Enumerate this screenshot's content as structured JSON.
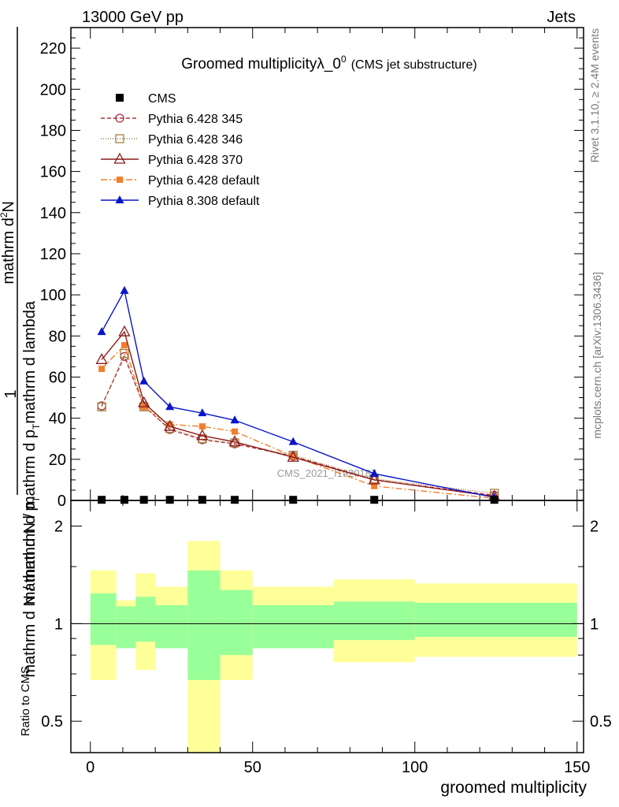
{
  "header": {
    "left": "13000 GeV pp",
    "right": "Jets"
  },
  "side_text": {
    "rivet": "Rivet 3.1.10, ≥ 2.4M events",
    "mcplots": "mcplots.cern.ch [arXiv:1306.3436]"
  },
  "watermark": "CMS_2021_I1920187",
  "colors": {
    "cms": "#000000",
    "p345": "#b03040",
    "p346": "#a08040",
    "p370": "#8b1a1a",
    "p6def": "#f08030",
    "p8def": "#0a14c8",
    "band_outer": "#ffff99",
    "band_inner": "#99ff99"
  },
  "chart_data": [
    {
      "type": "line",
      "title": "Groomed multiplicityλ_0",
      "title_sup": "0",
      "title_suffix": "(CMS jet substructure)",
      "ylabel_line1": "mathrm d N / mathrm d p",
      "ylabel_sub1": "T",
      "ylabel_line1b": "mathrm d lambda",
      "ylabel_line2": "mathrm d",
      "ylabel_sup2": "2",
      "ylabel_line2b": "N",
      "ylabel_frac_num": "1",
      "ylabel_frac_den": "mathrm d N / mathrm d p",
      "ylabel_frac_den_sub": "T",
      "ylim": [
        0,
        230
      ],
      "xlim": [
        -6,
        152
      ],
      "yticks": [
        "0",
        "20",
        "40",
        "60",
        "80",
        "100",
        "120",
        "140",
        "160",
        "180",
        "200",
        "220"
      ],
      "series": [
        {
          "name": "CMS",
          "key": "cms",
          "marker": "filled-square",
          "dash": "none",
          "x": [
            3.5,
            10.5,
            16.5,
            24.5,
            34.5,
            44.5,
            62.5,
            87.5,
            124.5
          ],
          "y": [
            0.3,
            0.3,
            0.3,
            0.3,
            0.3,
            0.3,
            0.3,
            0.3,
            0.3
          ]
        },
        {
          "name": "Pythia 6.428 345",
          "key": "p345",
          "marker": "open-circle",
          "dash": "5,3",
          "x": [
            3.5,
            10.5,
            16.5,
            24.5,
            34.5,
            44.5,
            62.5,
            87.5,
            124.5
          ],
          "y": [
            46,
            70,
            46,
            34.5,
            29.5,
            27.5,
            21.5,
            10,
            2.5
          ]
        },
        {
          "name": "Pythia 6.428 346",
          "key": "p346",
          "marker": "open-square",
          "dash": "1,2",
          "x": [
            3.5,
            10.5,
            16.5,
            24.5,
            34.5,
            44.5,
            62.5,
            87.5,
            124.5
          ],
          "y": [
            45.5,
            71.5,
            45.5,
            35,
            30,
            28,
            22,
            10.5,
            3.5
          ]
        },
        {
          "name": "Pythia 6.428 370",
          "key": "p370",
          "marker": "open-triangle",
          "dash": "none",
          "x": [
            3.5,
            10.5,
            16.5,
            24.5,
            34.5,
            44.5,
            62.5,
            87.5,
            124.5
          ],
          "y": [
            68.5,
            82,
            47.5,
            36,
            31.5,
            28.5,
            21,
            10,
            2
          ]
        },
        {
          "name": "Pythia 6.428 default",
          "key": "p6def",
          "marker": "filled-square-small",
          "dash": "8,3,2,3",
          "x": [
            3.5,
            10.5,
            16.5,
            24.5,
            34.5,
            44.5,
            62.5,
            87.5,
            124.5
          ],
          "y": [
            64,
            75.5,
            45.5,
            37,
            36,
            33.5,
            21.5,
            7,
            1
          ]
        },
        {
          "name": "Pythia 8.308 default",
          "key": "p8def",
          "marker": "filled-triangle",
          "dash": "none",
          "x": [
            3.5,
            10.5,
            16.5,
            24.5,
            34.5,
            44.5,
            62.5,
            87.5,
            124.5
          ],
          "y": [
            82,
            102,
            58,
            45.5,
            42.5,
            39,
            28.5,
            13,
            1.5
          ]
        }
      ]
    },
    {
      "type": "area",
      "ylabel": "Ratio to CMS",
      "xlabel": "groomed multiplicity",
      "ylim": [
        0.4,
        2.4
      ],
      "log_y": true,
      "yticks": [
        "0.5",
        "1",
        "2"
      ],
      "xticks": [
        "0",
        "50",
        "100",
        "150"
      ],
      "bins": [
        {
          "lo": 0,
          "hi": 8,
          "outer": [
            0.67,
            1.46
          ],
          "inner": [
            0.86,
            1.24
          ]
        },
        {
          "lo": 8,
          "hi": 14,
          "outer": [
            0.84,
            1.18
          ],
          "inner": [
            0.84,
            1.13
          ]
        },
        {
          "lo": 14,
          "hi": 20,
          "outer": [
            0.72,
            1.43
          ],
          "inner": [
            0.88,
            1.21
          ]
        },
        {
          "lo": 20,
          "hi": 30,
          "outer": [
            0.84,
            1.3
          ],
          "inner": [
            0.84,
            1.14
          ]
        },
        {
          "lo": 30,
          "hi": 40,
          "outer": [
            0.3,
            1.8
          ],
          "inner": [
            0.67,
            1.46
          ]
        },
        {
          "lo": 40,
          "hi": 50,
          "outer": [
            0.67,
            1.46
          ],
          "inner": [
            0.8,
            1.27
          ]
        },
        {
          "lo": 50,
          "hi": 75,
          "outer": [
            0.84,
            1.3
          ],
          "inner": [
            0.84,
            1.14
          ]
        },
        {
          "lo": 75,
          "hi": 100,
          "outer": [
            0.76,
            1.37
          ],
          "inner": [
            0.89,
            1.17
          ]
        },
        {
          "lo": 100,
          "hi": 150,
          "outer": [
            0.79,
            1.33
          ],
          "inner": [
            0.91,
            1.16
          ]
        }
      ]
    }
  ]
}
